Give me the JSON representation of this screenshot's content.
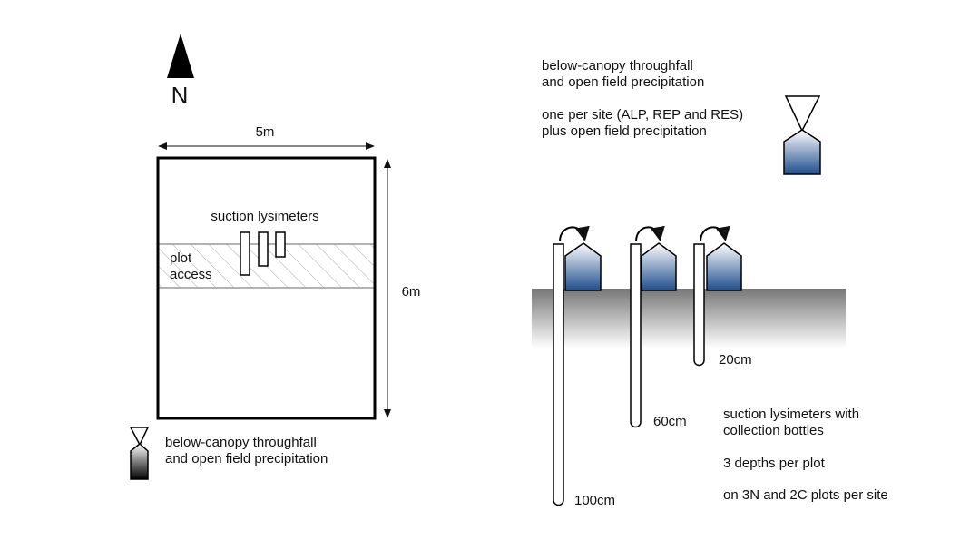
{
  "north": {
    "label": "N"
  },
  "plot": {
    "width_label": "5m",
    "height_label": "6m",
    "lysimeter_label": "suction lysimeters",
    "access_line1": "plot",
    "access_line2": "access"
  },
  "legend_left": {
    "line1": "below-canopy throughfall",
    "line2": "and open field precipitation"
  },
  "right_top": {
    "line1": "below-canopy throughfall",
    "line2": "and open field precipitation",
    "line3": "one per site (ALP, REP and RES)",
    "line4": "plus open field precipitation"
  },
  "depths": [
    "100cm",
    "60cm",
    "20cm"
  ],
  "lysimeter_note": {
    "line1": "suction lysimeters with",
    "line2": "collection bottles",
    "line3": "3 depths per plot",
    "line4": "on 3N and 2C plots per site"
  },
  "colors": {
    "bottle_fill": "#1f4e8c",
    "soil_top": "#7a7a7a",
    "hatch": "#aaaaaa"
  }
}
